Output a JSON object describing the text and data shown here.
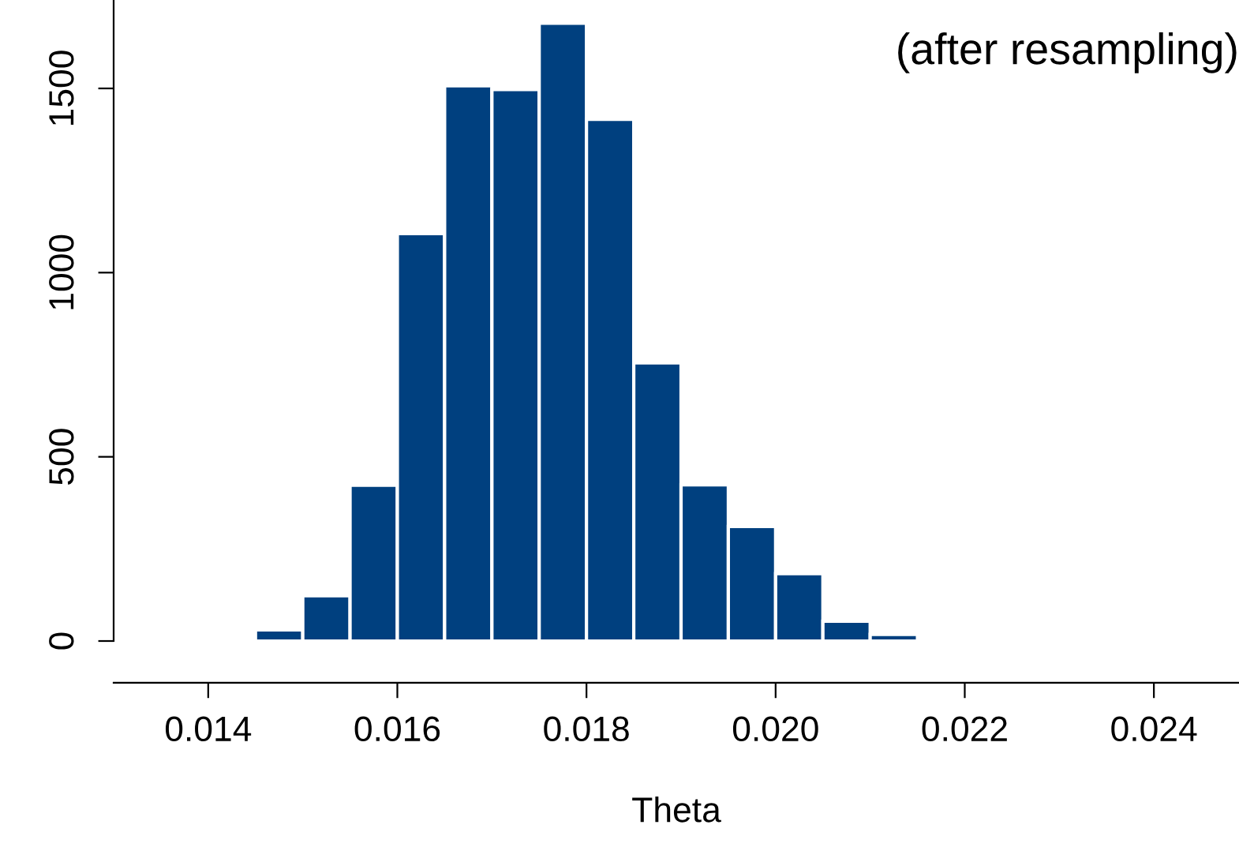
{
  "chart_data": {
    "type": "histogram",
    "title": "(after resampling)",
    "xlabel": "Theta",
    "bins": [
      0.0145,
      0.015,
      0.0155,
      0.016,
      0.0165,
      0.017,
      0.0175,
      0.018,
      0.0185,
      0.019,
      0.0195,
      0.02,
      0.0205,
      0.021,
      0.0215
    ],
    "values": [
      30,
      123,
      423,
      1106,
      1507,
      1497,
      1677,
      1416,
      755,
      424,
      311,
      183,
      54,
      18
    ],
    "color": "#00407f",
    "xlim": [
      0.013,
      0.0249
    ],
    "ylim": [
      0,
      1740
    ],
    "xticks": [
      {
        "value": 0.014,
        "label": "0.014"
      },
      {
        "value": 0.016,
        "label": "0.016"
      },
      {
        "value": 0.018,
        "label": "0.018"
      },
      {
        "value": 0.02,
        "label": "0.020"
      },
      {
        "value": 0.022,
        "label": "0.022"
      },
      {
        "value": 0.024,
        "label": "0.024"
      }
    ],
    "yticks": [
      0,
      500,
      1000,
      1500
    ],
    "grid": false
  }
}
